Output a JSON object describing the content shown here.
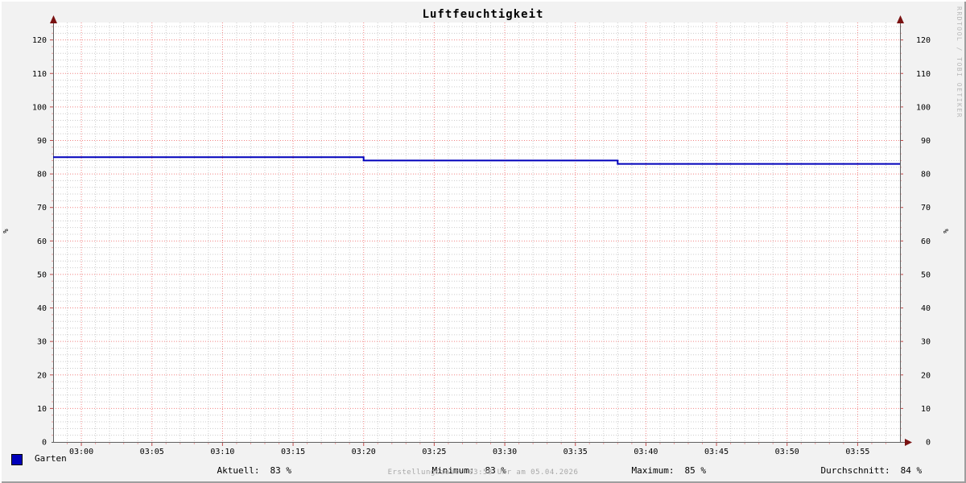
{
  "title": "Luftfeuchtigkeit",
  "watermark": "RRDTOOL / TOBI OETIKER",
  "footer": "Erstellungszeit: 03:58 Uhr am 05.04.2026",
  "y_axis": {
    "unit": "%",
    "ticks": [
      0,
      10,
      20,
      30,
      40,
      50,
      60,
      70,
      80,
      90,
      100,
      110,
      120
    ]
  },
  "x_axis": {
    "tick_labels": [
      "03:00",
      "03:05",
      "03:10",
      "03:15",
      "03:20",
      "03:25",
      "03:30",
      "03:35",
      "03:40",
      "03:45",
      "03:50",
      "03:55"
    ]
  },
  "legend": {
    "series_label": "Garten",
    "series_color": "#0000bb",
    "stats": [
      {
        "label": "Aktuell:",
        "value": "83 %"
      },
      {
        "label": "Minimum:",
        "value": "83 %"
      },
      {
        "label": "Maximum:",
        "value": "85 %"
      },
      {
        "label": "Durchschnitt:",
        "value": "84 %"
      }
    ]
  },
  "chart_data": {
    "type": "line",
    "title": "Luftfeuchtigkeit",
    "ylabel": "%",
    "ylim": [
      0,
      125
    ],
    "x_range": [
      "02:58",
      "03:58"
    ],
    "grid": "on",
    "grid_minor_color": "#cccccc",
    "grid_major_color": "#f28484",
    "axis_color": "#606060",
    "arrow_color": "#7a1212",
    "series": [
      {
        "name": "Garten",
        "color": "#0000bb",
        "step": true,
        "points": [
          {
            "t": "02:58",
            "v": 85
          },
          {
            "t": "03:20",
            "v": 85
          },
          {
            "t": "03:20",
            "v": 84
          },
          {
            "t": "03:38",
            "v": 84
          },
          {
            "t": "03:38",
            "v": 83
          },
          {
            "t": "03:58",
            "v": 83
          }
        ]
      }
    ]
  }
}
